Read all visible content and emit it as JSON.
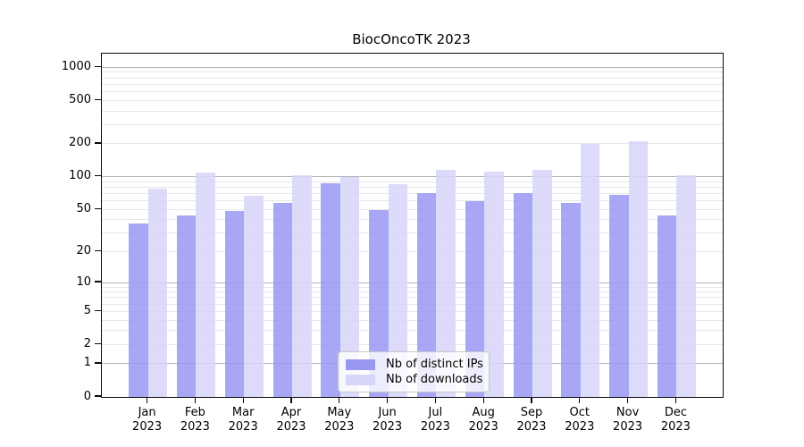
{
  "chart_data": {
    "type": "bar",
    "title": "BiocOncoTK 2023",
    "categories": [
      "Jan",
      "Feb",
      "Mar",
      "Apr",
      "May",
      "Jun",
      "Jul",
      "Aug",
      "Sep",
      "Oct",
      "Nov",
      "Dec"
    ],
    "category_year": "2023",
    "series": [
      {
        "name": "Nb of distinct IPs",
        "color": "#9898f3",
        "values": [
          37,
          44,
          48,
          57,
          87,
          49,
          71,
          60,
          70,
          57,
          68,
          44
        ]
      },
      {
        "name": "Nb of downloads",
        "color": "#d6d6f9",
        "values": [
          78,
          110,
          67,
          104,
          100,
          86,
          115,
          111,
          115,
          200,
          210,
          104
        ]
      }
    ],
    "y_scale": "log1p",
    "ylim": [
      0,
      1330
    ],
    "y_ticks": [
      0,
      1,
      2,
      5,
      10,
      20,
      50,
      100,
      200,
      500,
      1000
    ],
    "y_gridlines_major": [
      1,
      10,
      100,
      1000
    ],
    "y_gridlines_minor": [
      2,
      3,
      4,
      5,
      6,
      7,
      8,
      9,
      20,
      30,
      40,
      50,
      60,
      70,
      80,
      90,
      200,
      300,
      400,
      500,
      600,
      700,
      800,
      900
    ],
    "legend_position": "lower center",
    "grid": true,
    "colors": {
      "bar_ips": "#9898f3",
      "bar_downloads": "#d6d6f9",
      "grid_major": "#b4b4b4",
      "grid_minor": "#e7e7e7",
      "spine": "#0a0a0a"
    }
  }
}
